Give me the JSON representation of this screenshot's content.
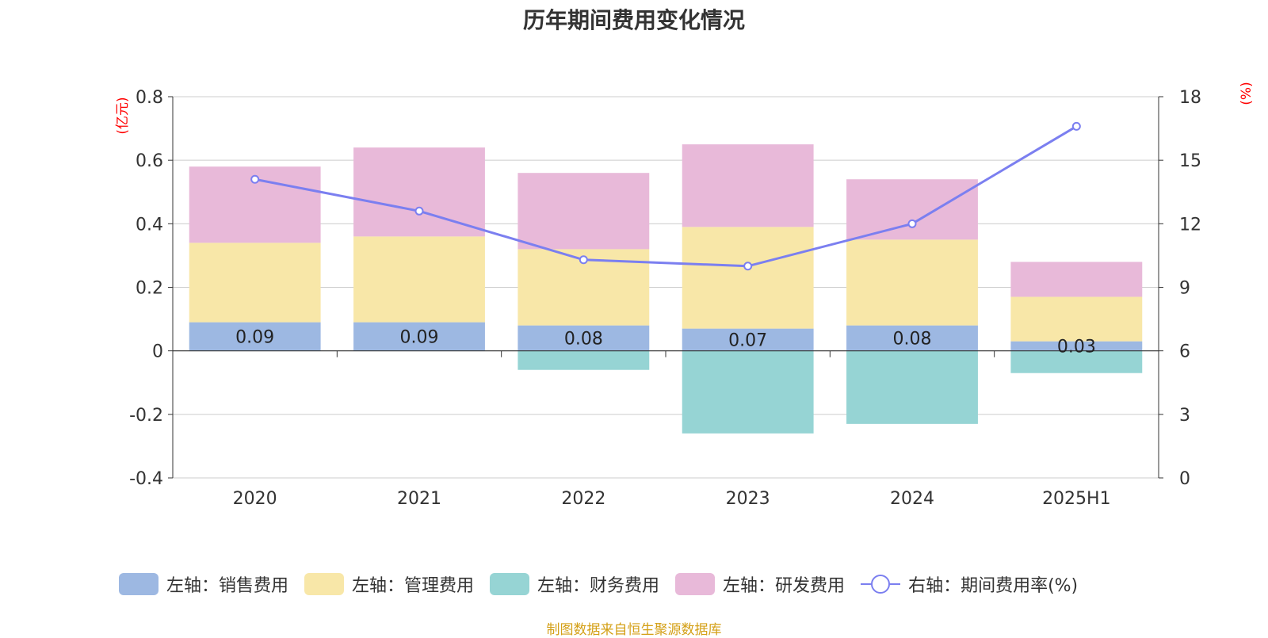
{
  "chart_data": {
    "type": "bar",
    "title": "历年期间费用变化情况",
    "categories": [
      "2020",
      "2021",
      "2022",
      "2023",
      "2024",
      "2025H1"
    ],
    "y_left": {
      "label": "(亿元)",
      "ylim": [
        -0.4,
        0.8
      ],
      "ticks": [
        "-0.4",
        "-0.2",
        "0",
        "0.2",
        "0.4",
        "0.6",
        "0.8"
      ],
      "tick_values": [
        -0.4,
        -0.2,
        0,
        0.2,
        0.4,
        0.6,
        0.8
      ]
    },
    "y_right": {
      "label": "(%)",
      "ylim": [
        0,
        18
      ],
      "ticks": [
        "0",
        "3",
        "6",
        "9",
        "12",
        "15",
        "18"
      ],
      "tick_values": [
        0,
        3,
        6,
        9,
        12,
        15,
        18
      ]
    },
    "series": [
      {
        "name": "左轴：销售费用",
        "kind": "bar",
        "axis": "left",
        "color": "#9db8e2",
        "values": [
          0.09,
          0.09,
          0.08,
          0.07,
          0.08,
          0.03
        ],
        "labels": [
          "0.09",
          "0.09",
          "0.08",
          "0.07",
          "0.08",
          "0.03"
        ]
      },
      {
        "name": "左轴：管理费用",
        "kind": "bar",
        "axis": "left",
        "color": "#f8e7a8",
        "values": [
          0.25,
          0.27,
          0.24,
          0.32,
          0.27,
          0.14
        ]
      },
      {
        "name": "左轴：财务费用",
        "kind": "bar",
        "axis": "left",
        "color": "#96d4d4",
        "values": [
          0.0,
          0.0,
          -0.06,
          -0.26,
          -0.23,
          -0.07
        ]
      },
      {
        "name": "左轴：研发费用",
        "kind": "bar",
        "axis": "left",
        "color": "#e8b9d9",
        "values": [
          0.24,
          0.28,
          0.24,
          0.26,
          0.19,
          0.11
        ]
      },
      {
        "name": "右轴：期间费用率(%)",
        "kind": "line",
        "axis": "right",
        "color": "#7b7ff0",
        "values": [
          14.1,
          12.6,
          10.3,
          10.0,
          12.0,
          16.6
        ]
      }
    ],
    "axis_label_color": "#ff0000",
    "grid": true,
    "legend": "bottom"
  },
  "source_note": "制图数据来自恒生聚源数据库"
}
